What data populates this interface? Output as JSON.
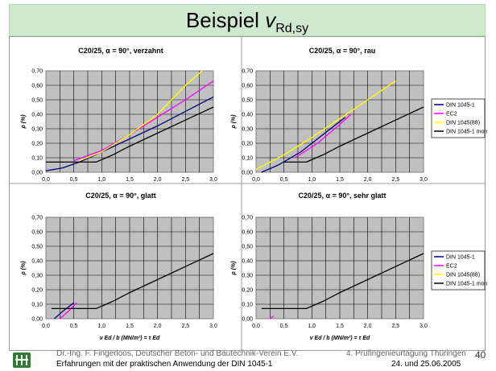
{
  "slide": {
    "title_main": "Beispiel ",
    "title_var": "v",
    "title_sub": "Rd,sy",
    "footer_line1": "Dr.-Ing. F. Fingerloos, Deutscher Beton- und Bautechnik-Verein E.V.",
    "footer_line2": "Erfahrungen mit der praktischen Anwendung der DIN 1045-1",
    "footer_event": "4. Prüfingenieurtagung Thüringen",
    "footer_date": "24. und 25.06.2005",
    "page_number": "40",
    "logo_icon": "association-logo-icon",
    "colors": {
      "title_bg": "#cfe9cf",
      "plot_bg": "#c0c0c0",
      "din": "#000080",
      "ec2": "#ff00ff",
      "din88": "#ffff00",
      "dinmon": "#000000"
    }
  },
  "chart_data": [
    {
      "type": "line",
      "title": "C20/25, α = 90°, verzahnt",
      "xlabel": "",
      "ylabel": "ρ (%)",
      "xlim": [
        0,
        3.0
      ],
      "ylim": [
        0,
        0.7
      ],
      "xticks": [
        "0,0",
        "0,5",
        "1,0",
        "1,5",
        "2,0",
        "2,5",
        "3,0"
      ],
      "yticks": [
        "0,00",
        "0,10",
        "0,20",
        "0,30",
        "0,40",
        "0,50",
        "0,60",
        "0,70"
      ],
      "series": [
        {
          "name": "DIN 1045-1",
          "color": "#000080",
          "x": [
            0,
            0.3,
            0.6,
            1.0,
            1.5,
            2.0,
            2.5,
            3.0
          ],
          "y": [
            0.01,
            0.03,
            0.07,
            0.14,
            0.23,
            0.32,
            0.42,
            0.52
          ]
        },
        {
          "name": "EC2",
          "color": "#ff00ff",
          "x": [
            0.5,
            1.0,
            1.5,
            2.0,
            2.5,
            3.0
          ],
          "y": [
            0.08,
            0.15,
            0.26,
            0.38,
            0.5,
            0.63
          ]
        },
        {
          "name": "DIN 1045(88)",
          "color": "#ffff00",
          "x": [
            0.6,
            1.0,
            1.5,
            2.0,
            2.5,
            2.8
          ],
          "y": [
            0.08,
            0.14,
            0.26,
            0.4,
            0.6,
            0.7
          ]
        },
        {
          "name": "DIN 1045-1 mon",
          "color": "#000000",
          "x": [
            0,
            0.9,
            1.2,
            1.5,
            2.0,
            2.5,
            3.0
          ],
          "y": [
            0.07,
            0.07,
            0.12,
            0.18,
            0.27,
            0.36,
            0.45
          ]
        }
      ]
    },
    {
      "type": "line",
      "title": "C20/25, α = 90°, rau",
      "xlabel": "",
      "ylabel": "ρ (%)",
      "xlim": [
        0,
        3.0
      ],
      "ylim": [
        0,
        0.7
      ],
      "xticks": [
        "0,0",
        "0,5",
        "1,0",
        "1,5",
        "2,0",
        "2,5",
        "3,0"
      ],
      "yticks": [
        "0,00",
        "0,10",
        "0,20",
        "0,30",
        "0,40",
        "0,50",
        "0,60",
        "0,70"
      ],
      "series": [
        {
          "name": "DIN 1045-1",
          "color": "#000080",
          "x": [
            0.1,
            0.4,
            0.8,
            1.2,
            1.6
          ],
          "y": [
            0.0,
            0.05,
            0.14,
            0.26,
            0.38
          ]
        },
        {
          "name": "EC2",
          "color": "#ff00ff",
          "x": [
            0.7,
            1.1,
            1.5,
            1.7
          ],
          "y": [
            0.1,
            0.2,
            0.33,
            0.4
          ]
        },
        {
          "name": "DIN 1045(88)",
          "color": "#ffff00",
          "x": [
            0.0,
            0.5,
            1.0,
            1.5,
            2.0,
            2.5
          ],
          "y": [
            0.02,
            0.12,
            0.24,
            0.37,
            0.5,
            0.63
          ]
        },
        {
          "name": "DIN 1045-1 mon",
          "color": "#000000",
          "x": [
            0.5,
            0.9,
            1.2,
            1.5,
            2.0,
            2.5,
            3.0
          ],
          "y": [
            0.07,
            0.07,
            0.12,
            0.18,
            0.27,
            0.36,
            0.45
          ]
        }
      ]
    },
    {
      "type": "line",
      "title": "C20/25, α = 90°, glatt",
      "xlabel": "v Ed / b (MN/m²) = τ Ed",
      "ylabel": "ρ (%)",
      "xlim": [
        0,
        3.0
      ],
      "ylim": [
        0,
        0.7
      ],
      "xticks": [
        "0,0",
        "0,5",
        "1,0",
        "1,5",
        "2,0",
        "2,5",
        "3,0"
      ],
      "yticks": [
        "0,00",
        "0,10",
        "0,20",
        "0,30",
        "0,40",
        "0,50",
        "0,60",
        "0,70"
      ],
      "series": [
        {
          "name": "DIN 1045-1",
          "color": "#000080",
          "x": [
            0.15,
            0.3,
            0.5
          ],
          "y": [
            0.0,
            0.05,
            0.11
          ]
        },
        {
          "name": "EC2",
          "color": "#ff00ff",
          "x": [
            0.25,
            0.4,
            0.55
          ],
          "y": [
            0.0,
            0.05,
            0.11
          ]
        },
        {
          "name": "DIN 1045(88)",
          "color": "#ffff00",
          "x": [],
          "y": []
        },
        {
          "name": "DIN 1045-1 mon",
          "color": "#000000",
          "x": [
            0.1,
            0.9,
            1.2,
            1.5,
            2.0,
            2.5,
            3.0
          ],
          "y": [
            0.07,
            0.07,
            0.12,
            0.18,
            0.27,
            0.36,
            0.45
          ]
        }
      ]
    },
    {
      "type": "line",
      "title": "C20/25, α = 90°, sehr glatt",
      "xlabel": "v Ed / b (MN/m²) = τ Ed",
      "ylabel": "ρ (%)",
      "xlim": [
        0,
        3.0
      ],
      "ylim": [
        0,
        0.7
      ],
      "xticks": [
        "0,0",
        "0,5",
        "1,0",
        "1,5",
        "2,0",
        "2,5",
        "3,0"
      ],
      "yticks": [
        "0,00",
        "0,10",
        "0,20",
        "0,30",
        "0,40",
        "0,50",
        "0,60",
        "0,70"
      ],
      "series": [
        {
          "name": "DIN 1045-1",
          "color": "#000080",
          "x": [],
          "y": []
        },
        {
          "name": "EC2",
          "color": "#ff00ff",
          "x": [
            0.25,
            0.32
          ],
          "y": [
            0.0,
            0.02
          ]
        },
        {
          "name": "DIN 1045(88)",
          "color": "#ffff00",
          "x": [],
          "y": []
        },
        {
          "name": "DIN 1045-1 mon",
          "color": "#000000",
          "x": [
            0.1,
            0.9,
            1.2,
            1.5,
            2.0,
            2.5,
            3.0
          ],
          "y": [
            0.07,
            0.07,
            0.12,
            0.18,
            0.27,
            0.36,
            0.45
          ]
        }
      ]
    }
  ],
  "legend": {
    "placement": "right",
    "entries": [
      "DIN 1045-1",
      "EC2",
      "DIN 1045(88)",
      "DIN 1045-1 mon"
    ]
  }
}
